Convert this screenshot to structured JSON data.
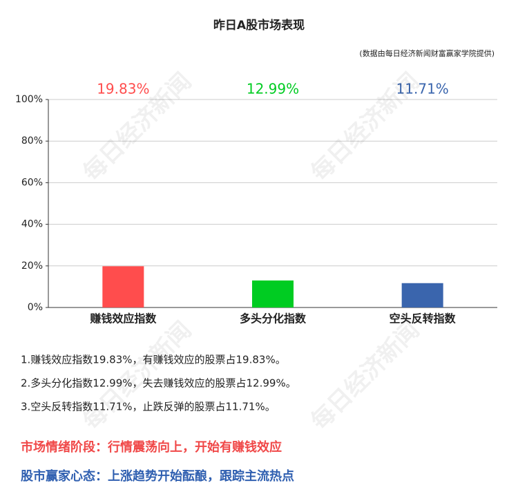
{
  "chart_data": {
    "type": "bar",
    "title": "昨日A股市场表现",
    "subtitle": "(数据由每日经济新闻财富赢家学院提供)",
    "categories": [
      "赚钱效应指数",
      "多头分化指数",
      "空头反转指数"
    ],
    "values": [
      19.83,
      12.99,
      11.71
    ],
    "value_labels": [
      "19.83%",
      "12.99%",
      "11.71%"
    ],
    "colors": [
      "#ff4d4d",
      "#00cc22",
      "#3a65ad"
    ],
    "ylim": [
      0,
      100
    ],
    "yticks": [
      {
        "value": 0,
        "label": "0%"
      },
      {
        "value": 20,
        "label": "20%"
      },
      {
        "value": 40,
        "label": "40%"
      },
      {
        "value": 60,
        "label": "60%"
      },
      {
        "value": 80,
        "label": "80%"
      },
      {
        "value": 100,
        "label": "100%"
      }
    ],
    "grid": true
  },
  "watermark": "每日经济新闻",
  "notes": [
    "1.赚钱效应指数19.83%，有赚钱效应的股票占19.83%。",
    "2.多头分化指数12.99%，失去赚钱效应的股票占12.99%。",
    "3.空头反转指数11.71%，止跌反弹的股票占11.71%。"
  ],
  "stage": "市场情绪阶段：行情震荡向上，开始有赚钱效应",
  "mindset": "股市赢家心态：上涨趋势开始酝酿，跟踪主流热点"
}
